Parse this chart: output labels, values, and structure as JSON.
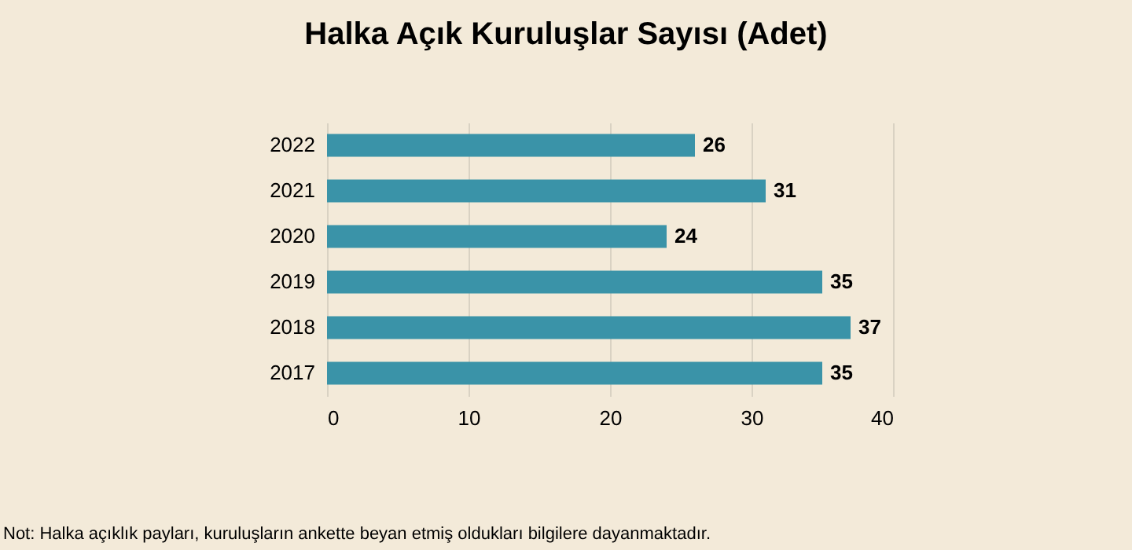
{
  "chart_data": {
    "type": "bar",
    "orientation": "horizontal",
    "title": "Halka Açık Kuruluşlar Sayısı (Adet)",
    "categories": [
      "2022",
      "2021",
      "2020",
      "2019",
      "2018",
      "2017"
    ],
    "values": [
      26,
      31,
      24,
      35,
      37,
      35
    ],
    "color": "#3a93a8",
    "xlim": [
      0,
      40
    ],
    "xticks": [
      0,
      10,
      20,
      30,
      40
    ],
    "grid": "x",
    "data_labels": true,
    "annotations": [
      "Not: Halka açıklık payları, kuruluşların ankette beyan etmiş oldukları bilgilere dayanmaktadır."
    ]
  }
}
